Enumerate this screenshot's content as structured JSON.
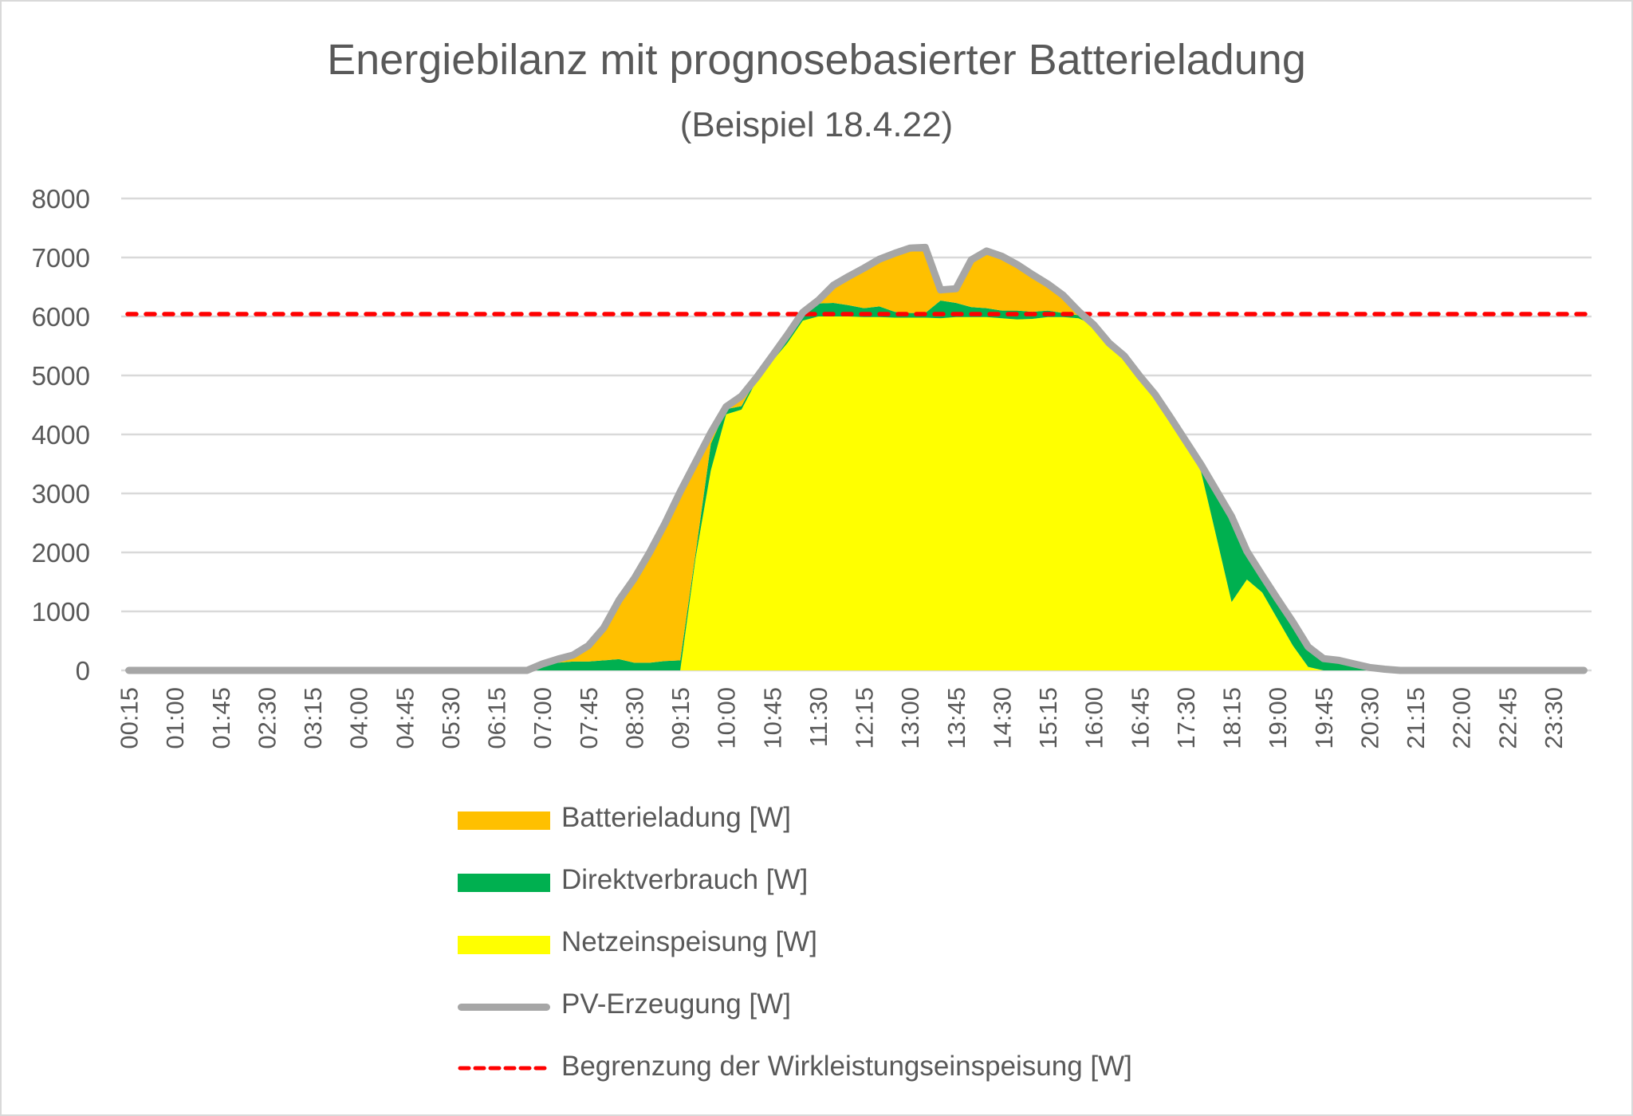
{
  "chart_data": {
    "type": "area",
    "title": "Energiebilanz mit prognosebasierter Batterieladung",
    "subtitle": "(Beispiel 18.4.22)",
    "xlabel": "",
    "ylabel": "",
    "ylim": [
      0,
      8000
    ],
    "yticks": [
      "0",
      "1000",
      "2000",
      "3000",
      "4000",
      "5000",
      "6000",
      "7000",
      "8000"
    ],
    "grid": true,
    "legend_position": "bottom",
    "stacked": true,
    "x": [
      "00:15",
      "00:30",
      "00:45",
      "01:00",
      "01:15",
      "01:30",
      "01:45",
      "02:00",
      "02:15",
      "02:30",
      "02:45",
      "03:00",
      "03:15",
      "03:30",
      "03:45",
      "04:00",
      "04:15",
      "04:30",
      "04:45",
      "05:00",
      "05:15",
      "05:30",
      "05:45",
      "06:00",
      "06:15",
      "06:30",
      "06:45",
      "07:00",
      "07:15",
      "07:30",
      "07:45",
      "08:00",
      "08:15",
      "08:30",
      "08:45",
      "09:00",
      "09:15",
      "09:30",
      "09:45",
      "10:00",
      "10:15",
      "10:30",
      "10:45",
      "11:00",
      "11:15",
      "11:30",
      "11:45",
      "12:00",
      "12:15",
      "12:30",
      "12:45",
      "13:00",
      "13:15",
      "13:30",
      "13:45",
      "14:00",
      "14:15",
      "14:30",
      "14:45",
      "15:00",
      "15:15",
      "15:30",
      "15:45",
      "16:00",
      "16:15",
      "16:30",
      "16:45",
      "17:00",
      "17:15",
      "17:30",
      "17:45",
      "18:00",
      "18:15",
      "18:30",
      "18:45",
      "19:00",
      "19:15",
      "19:30",
      "19:45",
      "20:00",
      "20:15",
      "20:30",
      "20:45",
      "21:00",
      "21:15",
      "21:30",
      "21:45",
      "22:00",
      "22:15",
      "22:30",
      "22:45",
      "23:00",
      "23:15",
      "23:30",
      "23:45",
      "24:00"
    ],
    "xtick_labels": [
      "00:15",
      "01:00",
      "01:45",
      "02:30",
      "03:15",
      "04:00",
      "04:45",
      "05:30",
      "06:15",
      "07:00",
      "07:45",
      "08:30",
      "09:15",
      "10:00",
      "10:45",
      "11:30",
      "12:15",
      "13:00",
      "13:45",
      "14:30",
      "15:15",
      "16:00",
      "16:45",
      "17:30",
      "18:15",
      "19:00",
      "19:45",
      "20:30",
      "21:15",
      "22:00",
      "22:45",
      "23:30"
    ],
    "series": [
      {
        "name": "Netzeinspeisung [W]",
        "kind": "area",
        "color": "#FFFF00",
        "values": [
          0,
          0,
          0,
          0,
          0,
          0,
          0,
          0,
          0,
          0,
          0,
          0,
          0,
          0,
          0,
          0,
          0,
          0,
          0,
          0,
          0,
          0,
          0,
          0,
          0,
          0,
          0,
          0,
          0,
          0,
          0,
          0,
          0,
          0,
          0,
          0,
          0,
          1900,
          3390,
          4340,
          4420,
          4920,
          5240,
          5550,
          5930,
          6000,
          6000,
          6000,
          5990,
          5990,
          5980,
          5980,
          5980,
          5970,
          5990,
          5990,
          5990,
          5970,
          5950,
          5960,
          5990,
          5990,
          5970,
          5860,
          5550,
          5330,
          4990,
          4680,
          4290,
          3890,
          3370,
          2270,
          1160,
          1540,
          1320,
          870,
          420,
          60,
          0,
          0,
          0,
          0,
          0,
          0,
          0,
          0,
          0,
          0,
          0,
          0,
          0,
          0,
          0,
          0,
          0,
          0
        ]
      },
      {
        "name": "Direktverbrauch [W]",
        "kind": "area",
        "color": "#00B050",
        "values": [
          0,
          0,
          0,
          0,
          0,
          0,
          0,
          0,
          0,
          0,
          0,
          0,
          0,
          0,
          0,
          0,
          0,
          0,
          0,
          0,
          0,
          0,
          0,
          0,
          0,
          0,
          0,
          110,
          130,
          150,
          150,
          170,
          190,
          130,
          130,
          160,
          170,
          80,
          450,
          90,
          60,
          30,
          60,
          100,
          140,
          220,
          230,
          190,
          150,
          180,
          100,
          80,
          80,
          300,
          240,
          170,
          150,
          130,
          150,
          120,
          110,
          70,
          50,
          0,
          0,
          0,
          0,
          0,
          0,
          0,
          120,
          780,
          1450,
          480,
          290,
          340,
          400,
          340,
          200,
          170,
          110,
          50,
          20,
          0,
          0,
          0,
          0,
          0,
          0,
          0,
          0,
          0,
          0,
          0,
          0,
          0
        ]
      },
      {
        "name": "Batterieladung [W]",
        "kind": "area",
        "color": "#FFC000",
        "values": [
          0,
          0,
          0,
          0,
          0,
          0,
          0,
          0,
          0,
          0,
          0,
          0,
          0,
          0,
          0,
          0,
          0,
          0,
          0,
          0,
          0,
          0,
          0,
          0,
          0,
          0,
          0,
          0,
          60,
          110,
          270,
          550,
          1000,
          1430,
          1870,
          2330,
          2860,
          1550,
          190,
          40,
          170,
          20,
          30,
          40,
          0,
          50,
          300,
          490,
          680,
          800,
          990,
          1100,
          1110,
          180,
          240,
          800,
          970,
          920,
          780,
          630,
          450,
          300,
          70,
          0,
          0,
          0,
          0,
          0,
          0,
          0,
          0,
          0,
          0,
          0,
          0,
          0,
          0,
          0,
          0,
          0,
          0,
          0,
          0,
          0,
          0,
          0,
          0,
          0,
          0,
          0,
          0,
          0,
          0,
          0,
          0,
          0
        ]
      },
      {
        "name": "PV-Erzeugung [W]",
        "kind": "line",
        "color": "#A6A6A6",
        "values": [
          0,
          0,
          0,
          0,
          0,
          0,
          0,
          0,
          0,
          0,
          0,
          0,
          0,
          0,
          0,
          0,
          0,
          0,
          0,
          0,
          0,
          0,
          0,
          0,
          0,
          0,
          0,
          110,
          190,
          260,
          420,
          720,
          1190,
          1560,
          2000,
          2490,
          3030,
          3530,
          4030,
          4470,
          4650,
          4970,
          5330,
          5690,
          6070,
          6270,
          6530,
          6680,
          6820,
          6970,
          7070,
          7160,
          7170,
          6450,
          6470,
          6960,
          7110,
          7020,
          6880,
          6710,
          6550,
          6360,
          6090,
          5860,
          5550,
          5330,
          4990,
          4680,
          4290,
          3890,
          3490,
          3050,
          2610,
          2020,
          1610,
          1210,
          820,
          400,
          200,
          170,
          110,
          50,
          20,
          0,
          0,
          0,
          0,
          0,
          0,
          0,
          0,
          0,
          0,
          0,
          0,
          0
        ]
      },
      {
        "name": "Begrenzung der Wirkleistungseinspeisung [W]",
        "kind": "dashed-line",
        "color": "#FF0000",
        "value": 6040
      }
    ],
    "legend": [
      {
        "label": "Batterieladung [W]",
        "color": "#FFC000",
        "kind": "area"
      },
      {
        "label": "Direktverbrauch [W]",
        "color": "#00B050",
        "kind": "area"
      },
      {
        "label": "Netzeinspeisung [W]",
        "color": "#FFFF00",
        "kind": "area"
      },
      {
        "label": "PV-Erzeugung [W]",
        "color": "#A6A6A6",
        "kind": "line"
      },
      {
        "label": "Begrenzung der Wirkleistungseinspeisung [W]",
        "color": "#FF0000",
        "kind": "dashed-line"
      }
    ]
  },
  "colors": {
    "text": "#595959",
    "grid": "#D9D9D9",
    "frame": "#D9D9D9"
  }
}
